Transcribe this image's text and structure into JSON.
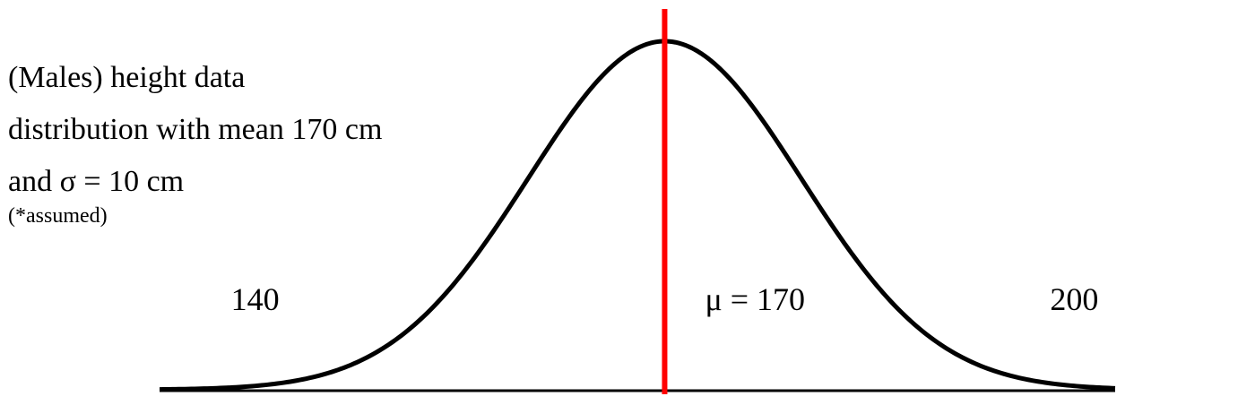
{
  "chart_data": {
    "type": "line",
    "title_lines": [
      "(Males) height data",
      "distribution with mean 170 cm",
      "and σ = 10 cm"
    ],
    "note": "(*assumed)",
    "distribution": "normal",
    "mean": 170,
    "sd": 10,
    "xlim": [
      133,
      203
    ],
    "tick_labels": [
      {
        "value": 140,
        "text": "140"
      },
      {
        "value": 170,
        "text": "μ = 170"
      },
      {
        "value": 200,
        "text": "200"
      }
    ],
    "mean_line": {
      "value": 170,
      "color": "#ff0000"
    },
    "curve_color": "#000000",
    "grid": false,
    "legend": "none"
  }
}
